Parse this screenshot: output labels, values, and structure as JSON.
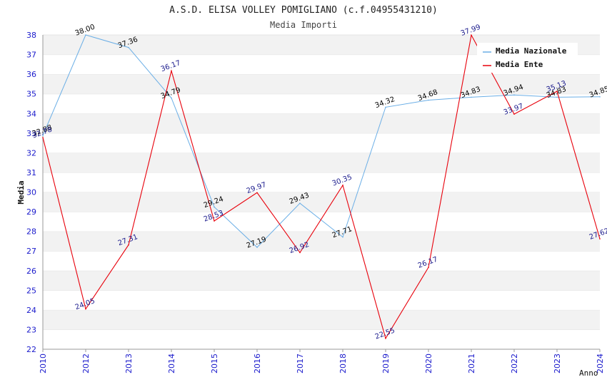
{
  "chart_data": {
    "type": "line",
    "title": "A.S.D. ELISA VOLLEY POMIGLIANO (c.f.04955431210)",
    "subtitle": "Media Importi",
    "ylabel": "Media",
    "xlabel": "Anno",
    "x": [
      2010,
      2012,
      2013,
      2014,
      2015,
      2016,
      2017,
      2018,
      2019,
      2020,
      2021,
      2022,
      2023,
      2024
    ],
    "ylim": [
      22,
      38
    ],
    "yticks": [
      22,
      23,
      24,
      25,
      26,
      27,
      28,
      29,
      30,
      31,
      32,
      33,
      34,
      35,
      36,
      37,
      38
    ],
    "grid": "horizontal alternating bands",
    "legend_position": "top-right",
    "series": [
      {
        "name": "Media Nazionale",
        "color": "#6aaee6",
        "label_color": "#000000",
        "values": [
          32.88,
          38.0,
          37.36,
          34.79,
          29.24,
          27.19,
          29.43,
          27.71,
          34.32,
          34.68,
          34.83,
          34.94,
          34.83,
          34.85
        ],
        "labels": [
          "32.88",
          "38.00",
          "37.36",
          "34.79",
          "29.24",
          "27.19",
          "29.43",
          "27.71",
          "34.32",
          "34.68",
          "34.83",
          "34.94",
          "34.83",
          "34.85"
        ]
      },
      {
        "name": "Media Ente",
        "color": "#e8000b",
        "label_color": "#1a1a8c",
        "values": [
          32.78,
          24.05,
          27.31,
          36.17,
          28.53,
          29.97,
          26.92,
          30.35,
          22.55,
          26.17,
          37.99,
          33.97,
          35.13,
          27.62
        ],
        "labels": [
          "32.78",
          "24.05",
          "27.31",
          "36.17",
          "28.53",
          "29.97",
          "26.92",
          "30.35",
          "22.55",
          "26.17",
          "37.99",
          "33.97",
          "35.13",
          "27.62"
        ]
      }
    ]
  }
}
